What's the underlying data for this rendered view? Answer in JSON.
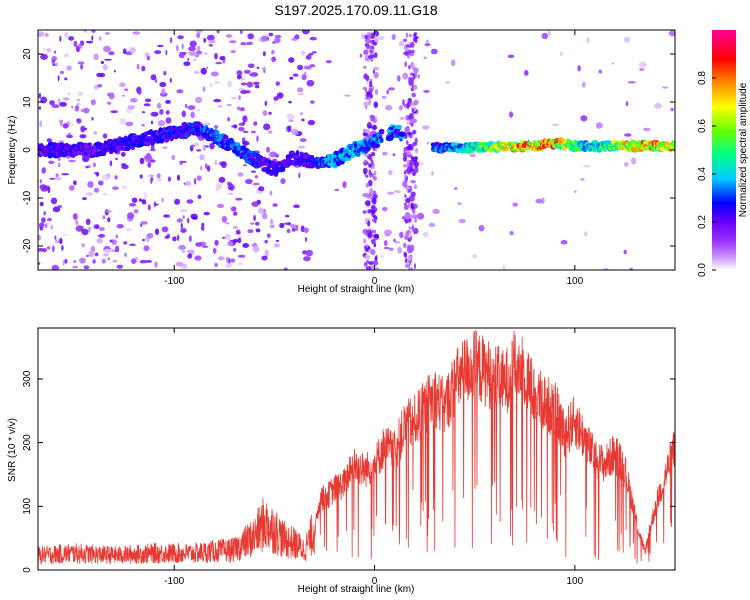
{
  "title": "S197.2025.170.09.11.G18",
  "chart_data": [
    {
      "type": "heatmap",
      "name": "spectrogram",
      "xlabel": "Height of straight line (km)",
      "ylabel": "Frequency (Hz)",
      "xlim": [
        -168,
        150
      ],
      "ylim": [
        -25,
        25
      ],
      "x_ticks": [
        -100,
        0,
        100
      ],
      "y_ticks": [
        -20,
        -10,
        0,
        10,
        20
      ],
      "grid": false,
      "colorbar": {
        "label": "Normalized spectral amplitude",
        "range": [
          0,
          1
        ],
        "ticks": [
          0.0,
          0.2,
          0.4,
          0.6,
          0.8
        ],
        "colors": [
          "#ffffff",
          "#cc99ff",
          "#9933ff",
          "#6600ff",
          "#0000ff",
          "#00ccff",
          "#00ff88",
          "#66ff00",
          "#ffff00",
          "#ff8800",
          "#ff0000",
          "#ff0099"
        ]
      },
      "ridge": [
        {
          "x": -140,
          "f": 0.0,
          "a": 0.25
        },
        {
          "x": -90,
          "f": 4.5,
          "a": 0.3
        },
        {
          "x": -80,
          "f": 3.0,
          "a": 0.35
        },
        {
          "x": -70,
          "f": 0.5,
          "a": 0.35
        },
        {
          "x": -60,
          "f": -2.0,
          "a": 0.3
        },
        {
          "x": -50,
          "f": -4.0,
          "a": 0.25
        },
        {
          "x": -40,
          "f": -1.5,
          "a": 0.25
        },
        {
          "x": -30,
          "f": -2.5,
          "a": 0.3
        },
        {
          "x": -20,
          "f": -2.0,
          "a": 0.4
        },
        {
          "x": -10,
          "f": 0.0,
          "a": 0.4
        },
        {
          "x": -4,
          "f": 1.0,
          "a": 0.35
        },
        {
          "x": 10,
          "f": 4.0,
          "a": 0.35
        },
        {
          "x": 30,
          "f": 0.5,
          "a": 0.35
        },
        {
          "x": 50,
          "f": 0.5,
          "a": 0.5
        },
        {
          "x": 70,
          "f": 0.8,
          "a": 0.8
        },
        {
          "x": 80,
          "f": 0.8,
          "a": 0.85
        },
        {
          "x": 90,
          "f": 1.5,
          "a": 0.85
        },
        {
          "x": 100,
          "f": 0.8,
          "a": 0.55
        },
        {
          "x": 110,
          "f": 0.8,
          "a": 0.45
        },
        {
          "x": 125,
          "f": 0.8,
          "a": 0.75
        },
        {
          "x": 140,
          "f": 0.8,
          "a": 0.8
        },
        {
          "x": 150,
          "f": 0.8,
          "a": 0.7
        }
      ]
    },
    {
      "type": "line",
      "name": "snr",
      "xlabel": "Height of straight line (km)",
      "ylabel": "SNR (10 * v/v)",
      "xlim": [
        -168,
        150
      ],
      "ylim": [
        0,
        380
      ],
      "x_ticks": [
        -100,
        0,
        100
      ],
      "y_ticks": [
        0,
        100,
        200,
        300
      ],
      "grid": false,
      "color": "#e83a33",
      "x": [
        -168,
        -150,
        -130,
        -110,
        -90,
        -80,
        -70,
        -60,
        -55,
        -50,
        -45,
        -40,
        -35,
        -30,
        -27,
        -25,
        -20,
        -15,
        -10,
        -5,
        0,
        5,
        10,
        15,
        20,
        25,
        30,
        35,
        40,
        45,
        50,
        55,
        60,
        65,
        70,
        75,
        80,
        85,
        90,
        95,
        100,
        105,
        110,
        115,
        120,
        125,
        128,
        132,
        135,
        140,
        145,
        150
      ],
      "y": [
        22,
        25,
        22,
        25,
        25,
        28,
        30,
        50,
        70,
        60,
        45,
        40,
        30,
        60,
        120,
        115,
        130,
        140,
        170,
        160,
        170,
        200,
        190,
        230,
        240,
        260,
        280,
        260,
        300,
        320,
        330,
        320,
        310,
        300,
        330,
        320,
        280,
        270,
        260,
        220,
        240,
        210,
        180,
        170,
        190,
        160,
        120,
        60,
        30,
        100,
        150,
        200
      ]
    }
  ]
}
